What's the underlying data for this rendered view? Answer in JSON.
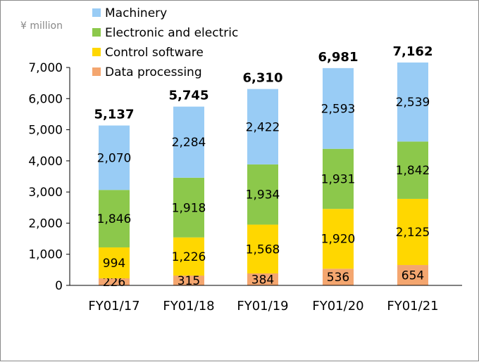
{
  "chart_data": {
    "type": "bar",
    "stacked": true,
    "unit_label": "¥ million",
    "categories": [
      "FY01/17",
      "FY01/18",
      "FY01/19",
      "FY01/20",
      "FY01/21"
    ],
    "series": [
      {
        "name": "Data processing",
        "color": "#F4A66F",
        "values": [
          226,
          315,
          384,
          536,
          654
        ]
      },
      {
        "name": "Control software",
        "color": "#FFD700",
        "values": [
          994,
          1226,
          1568,
          1920,
          2125
        ]
      },
      {
        "name": "Electronic and electric",
        "color": "#8CC84B",
        "values": [
          1846,
          1918,
          1934,
          1931,
          1842
        ]
      },
      {
        "name": "Machinery",
        "color": "#99CCF5",
        "values": [
          2070,
          2284,
          2422,
          2593,
          2539
        ]
      }
    ],
    "totals": [
      "5,137",
      "5,745",
      "6,310",
      "6,981",
      "7,162"
    ],
    "segment_labels": [
      [
        "226",
        "315",
        "384",
        "536",
        "654"
      ],
      [
        "994",
        "1,226",
        "1,568",
        "1,920",
        "2,125"
      ],
      [
        "1,846",
        "1,918",
        "1,934",
        "1,931",
        "1,842"
      ],
      [
        "2,070",
        "2,284",
        "2,422",
        "2,593",
        "2,539"
      ]
    ],
    "legend_order": [
      "Machinery",
      "Electronic and electric",
      "Control software",
      "Data processing"
    ],
    "legend_position": "top-left",
    "y_ticks": [
      "0",
      "1,000",
      "2,000",
      "3,000",
      "4,000",
      "5,000",
      "6,000",
      "7,000"
    ],
    "ylim": [
      0,
      7000
    ],
    "grid": false
  }
}
